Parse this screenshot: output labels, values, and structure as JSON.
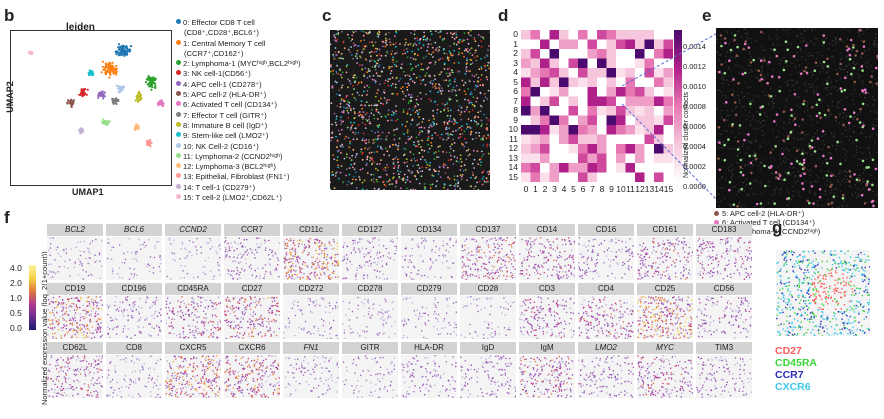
{
  "panels": {
    "b": "b",
    "c": "c",
    "d": "d",
    "e": "e",
    "f": "f",
    "g": "g"
  },
  "umap": {
    "title": "leiden",
    "xlabel": "UMAP1",
    "ylabel": "UMAP2"
  },
  "legend": [
    {
      "num": "0:",
      "text": "Effector  CD8 T cell",
      "cont": "(CD8⁺,CD28⁺,BCL6⁺)",
      "color": "#1f77b4"
    },
    {
      "num": "1:",
      "text": "Central Memory T cell",
      "cont": "(CCR7⁺,CD162⁺)",
      "color": "#ff7f0e"
    },
    {
      "num": "2:",
      "text": "Lymphoma-1  (MYCʰⁱᵍʰ,BCL2ʰⁱᵍʰ)",
      "color": "#2ca02c"
    },
    {
      "num": "3:",
      "text": "NK cell-1(CD56⁺)",
      "color": "#d62728"
    },
    {
      "num": "4:",
      "text": "APC cell-1 (CD278⁺)",
      "color": "#9467bd"
    },
    {
      "num": "5:",
      "text": "APC cell-2 (HLA-DR⁺)",
      "color": "#8c564b"
    },
    {
      "num": "6:",
      "text": "Activated T cell (CD134⁺)",
      "color": "#e377c2"
    },
    {
      "num": "7:",
      "text": "Effector  T cell (GITR⁺)",
      "color": "#7f7f7f"
    },
    {
      "num": "8:",
      "text": "Immature B cell (IgD⁺)",
      "color": "#bcbd22"
    },
    {
      "num": "9:",
      "text": "Stem-like cell (LMO2⁺)",
      "color": "#17becf"
    },
    {
      "num": "10:",
      "text": "NK Cell-2 (CD16⁺)",
      "color": "#aec7e8"
    },
    {
      "num": "11:",
      "text": "Lymphoma-2 (CCND2ʰⁱᵍʰ)",
      "color": "#98df8a"
    },
    {
      "num": "12:",
      "text": "Lymphoma-3 (BCL2ʰⁱᵍʰ)",
      "color": "#ffbb78"
    },
    {
      "num": "13:",
      "text": "Epithelial, Fibroblast (FN1⁺)",
      "color": "#ff9896"
    },
    {
      "num": "14:",
      "text": "T cell-1 (CD279⁺)",
      "color": "#c5b0d5"
    },
    {
      "num": "15:",
      "text": "T cell-2 (LMO2⁺,CD62L⁺)",
      "color": "#f7b6d2"
    }
  ],
  "heatmap": {
    "ylabels": [
      "0",
      "1",
      "2",
      "3",
      "4",
      "5",
      "6",
      "7",
      "8",
      "9",
      "10",
      "11",
      "12",
      "13",
      "14",
      "15"
    ],
    "xlabels": [
      "0",
      "1",
      "2",
      "3",
      "4",
      "5",
      "6",
      "7",
      "8",
      "9",
      "10",
      "11",
      "12",
      "13",
      "14",
      "15"
    ],
    "colorbar_label": "Normalized cluster contacts",
    "colorbar_ticks": [
      "0.0014",
      "0.0012",
      "0.0010",
      "0.0008",
      "0.0006",
      "0.0004",
      "0.0002",
      "0.0000"
    ]
  },
  "e_legend": [
    {
      "text": "5: APC cell-2 (HLA-DR⁺)",
      "color": "#8c564b"
    },
    {
      "text": "6: Activated T cell (CD134⁺)",
      "color": "#e377c2"
    },
    {
      "text": "11: Lymphoma-2 (CCND2ʰⁱᵍʰ)",
      "color": "#98df8a"
    }
  ],
  "f_panel": {
    "ylabel": "Normalized expression value (log_2(1+count))",
    "cbar_ticks": [
      "4.0",
      "2.0",
      "1.0",
      "0.5",
      "0.0"
    ],
    "markers": [
      {
        "name": "BCL2",
        "italic": true,
        "level": 0.15
      },
      {
        "name": "BCL6",
        "italic": true,
        "level": 0.1
      },
      {
        "name": "CCND2",
        "italic": true,
        "level": 0.1
      },
      {
        "name": "CCR7",
        "italic": false,
        "level": 0.35
      },
      {
        "name": "CD11c",
        "italic": false,
        "level": 0.95
      },
      {
        "name": "CD127",
        "italic": false,
        "level": 0.3
      },
      {
        "name": "CD134",
        "italic": false,
        "level": 0.2
      },
      {
        "name": "CD137",
        "italic": false,
        "level": 0.6
      },
      {
        "name": "CD14",
        "italic": false,
        "level": 0.55
      },
      {
        "name": "CD16",
        "italic": false,
        "level": 0.3
      },
      {
        "name": "CD161",
        "italic": false,
        "level": 0.55
      },
      {
        "name": "CD183",
        "italic": false,
        "level": 0.5
      },
      {
        "name": "CD19",
        "italic": false,
        "level": 0.9
      },
      {
        "name": "CD196",
        "italic": false,
        "level": 0.3
      },
      {
        "name": "CD45RA",
        "italic": false,
        "level": 0.55
      },
      {
        "name": "CD27",
        "italic": false,
        "level": 0.7
      },
      {
        "name": "CD272",
        "italic": false,
        "level": 0.15
      },
      {
        "name": "CD278",
        "italic": false,
        "level": 0.15
      },
      {
        "name": "CD279",
        "italic": false,
        "level": 0.15
      },
      {
        "name": "CD28",
        "italic": false,
        "level": 0.1
      },
      {
        "name": "CD3",
        "italic": false,
        "level": 0.5
      },
      {
        "name": "CD4",
        "italic": false,
        "level": 0.55
      },
      {
        "name": "CD25",
        "italic": false,
        "level": 1.0
      },
      {
        "name": "CD56",
        "italic": false,
        "level": 0.35
      },
      {
        "name": "CD62L",
        "italic": false,
        "level": 0.55
      },
      {
        "name": "CD8",
        "italic": false,
        "level": 0.2
      },
      {
        "name": "CXCR5",
        "italic": false,
        "level": 0.85
      },
      {
        "name": "CXCR6",
        "italic": false,
        "level": 0.75
      },
      {
        "name": "FN1",
        "italic": true,
        "level": 0.2
      },
      {
        "name": "GITR",
        "italic": false,
        "level": 0.15
      },
      {
        "name": "HLA-DR",
        "italic": false,
        "level": 0.25
      },
      {
        "name": "IgD",
        "italic": false,
        "level": 0.3
      },
      {
        "name": "IgM",
        "italic": false,
        "level": 0.6
      },
      {
        "name": "LMO2",
        "italic": true,
        "level": 0.35
      },
      {
        "name": "MYC",
        "italic": true,
        "level": 0.55
      },
      {
        "name": "TIM3",
        "italic": false,
        "level": 0.3
      }
    ]
  },
  "g_legend": [
    {
      "text": "CD27",
      "color": "#ff5a5a"
    },
    {
      "text": "CD45RA",
      "color": "#3cd63c"
    },
    {
      "text": "CCR7",
      "color": "#2c2cb8"
    },
    {
      "text": "CXCR6",
      "color": "#3cc8e6"
    }
  ]
}
